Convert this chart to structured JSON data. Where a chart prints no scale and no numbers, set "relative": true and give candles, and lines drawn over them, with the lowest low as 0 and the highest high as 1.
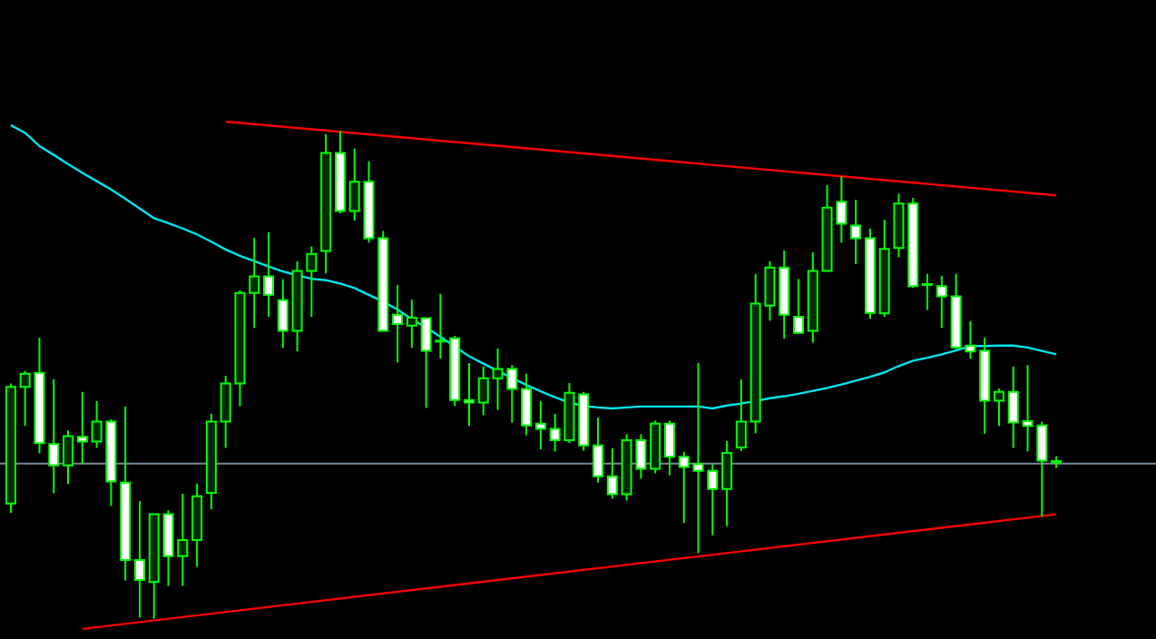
{
  "chart_data": {
    "type": "candlestick",
    "relative": true,
    "color": "#00ff00",
    "categories": [
      null,
      null,
      null,
      null,
      null,
      null,
      null,
      null,
      null,
      null,
      null,
      null,
      null,
      null,
      null,
      null,
      null,
      null,
      null,
      null,
      null,
      null,
      null,
      null,
      null,
      null,
      null,
      null,
      null,
      null,
      null,
      null,
      null,
      null,
      null,
      null,
      null,
      null,
      null,
      null,
      null,
      null,
      null,
      null,
      null,
      null,
      null,
      null,
      null,
      null,
      null,
      null,
      null,
      null,
      null,
      null,
      null,
      null,
      null,
      null,
      null,
      null,
      null,
      null,
      null,
      null,
      null,
      null,
      null,
      null,
      null,
      null,
      null,
      null
    ],
    "ohlc": [
      [
        0.236,
        0.482,
        0.217,
        0.475
      ],
      [
        0.475,
        0.508,
        0.395,
        0.502
      ],
      [
        0.504,
        0.576,
        0.339,
        0.36
      ],
      [
        0.358,
        0.491,
        0.257,
        0.314
      ],
      [
        0.314,
        0.386,
        0.276,
        0.374
      ],
      [
        0.373,
        0.465,
        0.317,
        0.363
      ],
      [
        0.363,
        0.446,
        0.35,
        0.404
      ],
      [
        0.404,
        0.409,
        0.231,
        0.281
      ],
      [
        0.279,
        0.435,
        0.078,
        0.12
      ],
      [
        0.12,
        0.241,
        0.002,
        0.079
      ],
      [
        0.075,
        0.214,
        0,
        0.214
      ],
      [
        0.214,
        0.222,
        0.067,
        0.128
      ],
      [
        0.128,
        0.256,
        0.067,
        0.161
      ],
      [
        0.161,
        0.277,
        0.106,
        0.251
      ],
      [
        0.258,
        0.42,
        0.224,
        0.404
      ],
      [
        0.404,
        0.498,
        0.35,
        0.482
      ],
      [
        0.482,
        0.673,
        0.436,
        0.668
      ],
      [
        0.668,
        0.781,
        0.596,
        0.702
      ],
      [
        0.702,
        0.792,
        0.619,
        0.664
      ],
      [
        0.653,
        0.696,
        0.555,
        0.59
      ],
      [
        0.59,
        0.733,
        0.548,
        0.713
      ],
      [
        0.713,
        0.763,
        0.619,
        0.748
      ],
      [
        0.754,
        0.994,
        0.708,
        0.955
      ],
      [
        0.955,
        1,
        0.831,
        0.836
      ],
      [
        0.836,
        0.964,
        0.816,
        0.896
      ],
      [
        0.896,
        0.938,
        0.771,
        0.78
      ],
      [
        0.78,
        0.795,
        0.59,
        0.59
      ],
      [
        0.623,
        0.684,
        0.525,
        0.604
      ],
      [
        0.601,
        0.654,
        0.555,
        0.617
      ],
      [
        0.616,
        0.616,
        0.432,
        0.549
      ],
      [
        0.57,
        0.666,
        0.533,
        0.568
      ],
      [
        0.575,
        0.58,
        0.436,
        0.448
      ],
      [
        0.448,
        0.524,
        0.395,
        0.443
      ],
      [
        0.443,
        0.517,
        0.417,
        0.493
      ],
      [
        0.493,
        0.554,
        0.428,
        0.512
      ],
      [
        0.512,
        0.52,
        0.402,
        0.471
      ],
      [
        0.471,
        0.502,
        0.376,
        0.396
      ],
      [
        0.4,
        0.446,
        0.347,
        0.389
      ],
      [
        0.389,
        0.42,
        0.343,
        0.366
      ],
      [
        0.366,
        0.483,
        0.36,
        0.463
      ],
      [
        0.46,
        0.465,
        0.344,
        0.355
      ],
      [
        0.355,
        0.412,
        0.279,
        0.292
      ],
      [
        0.292,
        0.349,
        0.246,
        0.255
      ],
      [
        0.255,
        0.378,
        0.242,
        0.366
      ],
      [
        0.366,
        0.378,
        0.287,
        0.307
      ],
      [
        0.307,
        0.406,
        0.298,
        0.4
      ],
      [
        0.4,
        0.406,
        0.294,
        0.332
      ],
      [
        0.332,
        0.342,
        0.196,
        0.311
      ],
      [
        0.317,
        0.524,
        0.134,
        0.303
      ],
      [
        0.303,
        0.317,
        0.171,
        0.266
      ],
      [
        0.266,
        0.364,
        0.19,
        0.34
      ],
      [
        0.351,
        0.491,
        0.344,
        0.404
      ],
      [
        0.404,
        0.707,
        0.38,
        0.646
      ],
      [
        0.642,
        0.733,
        0.611,
        0.72
      ],
      [
        0.72,
        0.755,
        0.574,
        0.623
      ],
      [
        0.619,
        0.696,
        0.586,
        0.586
      ],
      [
        0.59,
        0.751,
        0.566,
        0.713
      ],
      [
        0.713,
        0.889,
        0.713,
        0.843
      ],
      [
        0.855,
        0.907,
        0.771,
        0.81
      ],
      [
        0.806,
        0.859,
        0.727,
        0.78
      ],
      [
        0.78,
        0.8,
        0.615,
        0.627
      ],
      [
        0.626,
        0.818,
        0.619,
        0.758
      ],
      [
        0.76,
        0.871,
        0.741,
        0.851
      ],
      [
        0.851,
        0.863,
        0.678,
        0.682
      ],
      [
        0.686,
        0.707,
        0.633,
        0.684
      ],
      [
        0.682,
        0.703,
        0.596,
        0.661
      ],
      [
        0.661,
        0.707,
        0.553,
        0.556
      ],
      [
        0.56,
        0.61,
        0.533,
        0.548
      ],
      [
        0.549,
        0.576,
        0.379,
        0.447
      ],
      [
        0.447,
        0.472,
        0.395,
        0.465
      ],
      [
        0.465,
        0.517,
        0.35,
        0.402
      ],
      [
        0.405,
        0.52,
        0.343,
        0.395
      ],
      [
        0.396,
        0.404,
        0.209,
        0.324
      ],
      [
        0.323,
        0.333,
        0.309,
        0.32
      ]
    ],
    "series": [
      {
        "type": "line",
        "color": "#00e5ee",
        "values": [
          1.012,
          0.996,
          0.969,
          0.951,
          0.932,
          0.914,
          0.897,
          0.88,
          0.861,
          0.841,
          0.821,
          0.811,
          0.8,
          0.788,
          0.773,
          0.757,
          0.744,
          0.733,
          0.722,
          0.712,
          0.704,
          0.697,
          0.694,
          0.687,
          0.678,
          0.664,
          0.65,
          0.634,
          0.614,
          0.597,
          0.578,
          0.558,
          0.538,
          0.523,
          0.508,
          0.493,
          0.479,
          0.466,
          0.454,
          0.443,
          0.436,
          0.433,
          0.431,
          0.433,
          0.435,
          0.435,
          0.435,
          0.435,
          0.435,
          0.431,
          0.437,
          0.441,
          0.446,
          0.452,
          0.456,
          0.461,
          0.467,
          0.473,
          0.48,
          0.488,
          0.496,
          0.505,
          0.518,
          0.529,
          0.535,
          0.542,
          0.55,
          0.559,
          0.559,
          0.56,
          0.56,
          0.556,
          0.549,
          0.542
        ]
      },
      {
        "type": "line",
        "color": "#ff0000",
        "values": [
          null,
          null,
          null,
          null,
          null,
          null,
          null,
          null,
          null,
          null,
          null,
          null,
          null,
          null,
          null,
          1.019,
          null,
          null,
          null,
          null,
          null,
          null,
          null,
          null,
          null,
          null,
          null,
          null,
          null,
          null,
          null,
          null,
          null,
          null,
          null,
          null,
          null,
          null,
          null,
          null,
          null,
          null,
          null,
          null,
          null,
          null,
          null,
          null,
          null,
          null,
          null,
          null,
          null,
          null,
          null,
          null,
          null,
          null,
          null,
          null,
          null,
          null,
          null,
          null,
          null,
          null,
          null,
          null,
          null,
          null,
          null,
          null,
          null,
          0.868
        ]
      },
      {
        "type": "line",
        "color": "#ff0000",
        "values": [
          null,
          null,
          null,
          null,
          null,
          -0.021,
          null,
          null,
          null,
          null,
          null,
          null,
          null,
          null,
          null,
          null,
          null,
          null,
          null,
          null,
          null,
          null,
          null,
          null,
          null,
          null,
          null,
          null,
          null,
          null,
          null,
          null,
          null,
          null,
          null,
          null,
          null,
          null,
          null,
          null,
          null,
          null,
          null,
          null,
          null,
          null,
          null,
          null,
          null,
          null,
          null,
          null,
          null,
          null,
          null,
          null,
          null,
          null,
          null,
          null,
          null,
          null,
          null,
          null,
          null,
          null,
          null,
          null,
          null,
          null,
          null,
          null,
          null,
          0.214
        ]
      }
    ],
    "ref_lines": [
      {
        "axis": "y",
        "value": 0.318,
        "color": "#778899"
      }
    ]
  }
}
